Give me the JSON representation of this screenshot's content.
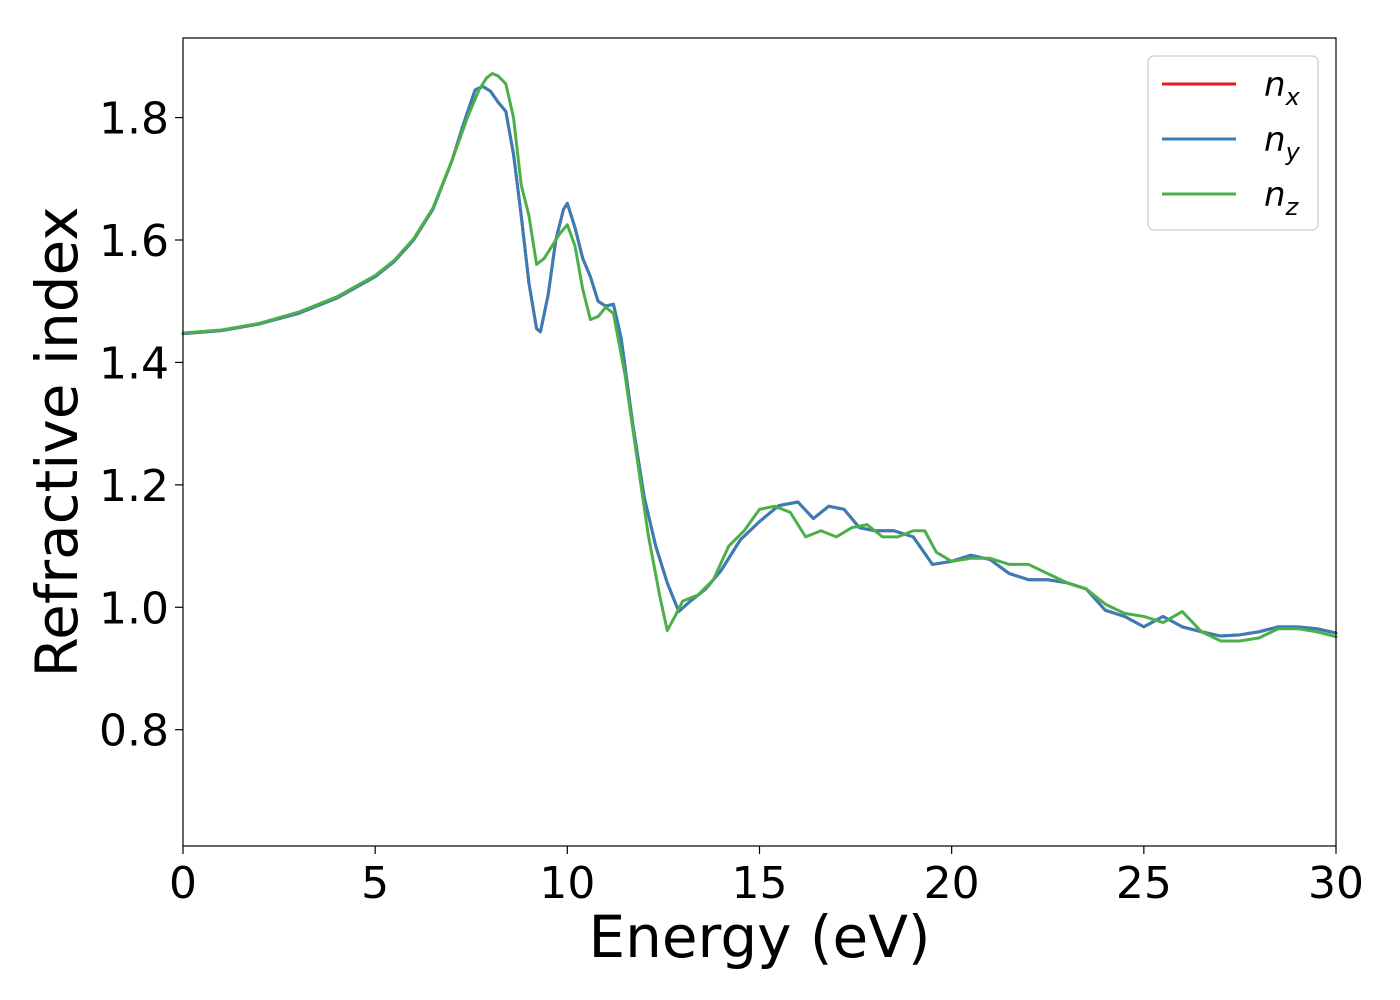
{
  "chart_data": {
    "type": "line",
    "title": "",
    "xlabel": "Energy (eV)",
    "ylabel": "Refractive index",
    "xlim": [
      0,
      30
    ],
    "ylim": [
      0.61,
      1.93
    ],
    "x_ticks": [
      "0",
      "5",
      "10",
      "15",
      "20",
      "25",
      "30"
    ],
    "y_ticks": [
      "0.8",
      "1.0",
      "1.2",
      "1.4",
      "1.6",
      "1.8"
    ],
    "grid": false,
    "legend_position": "top-right",
    "colors": {
      "n_x": "#e41a1c",
      "n_y": "#377eb8",
      "n_z": "#4daf4a"
    },
    "series": [
      {
        "name": "n_x",
        "legend_main": "n",
        "legend_sub": "x",
        "color": "#e41a1c",
        "x": [
          0,
          1,
          2,
          3,
          4,
          5,
          5.5,
          6,
          6.5,
          7,
          7.3,
          7.6,
          7.8,
          8.0,
          8.2,
          8.4,
          8.6,
          8.8,
          9.0,
          9.2,
          9.3,
          9.5,
          9.7,
          9.9,
          10.0,
          10.2,
          10.4,
          10.6,
          10.8,
          11.0,
          11.2,
          11.4,
          11.7,
          12.0,
          12.3,
          12.6,
          12.9,
          13.2,
          13.6,
          14.0,
          14.5,
          15.0,
          15.5,
          16.0,
          16.4,
          16.8,
          17.2,
          17.6,
          18.0,
          18.5,
          19.0,
          19.5,
          20.0,
          20.5,
          21.0,
          21.5,
          22.0,
          22.5,
          23.0,
          23.5,
          24.0,
          24.5,
          25.0,
          25.5,
          26.0,
          26.5,
          27.0,
          27.5,
          28.0,
          28.5,
          29.0,
          29.5,
          30.0
        ],
        "values": [
          1.447,
          1.452,
          1.463,
          1.48,
          1.505,
          1.54,
          1.565,
          1.6,
          1.65,
          1.73,
          1.79,
          1.845,
          1.851,
          1.843,
          1.825,
          1.81,
          1.74,
          1.64,
          1.53,
          1.455,
          1.45,
          1.51,
          1.6,
          1.65,
          1.66,
          1.62,
          1.57,
          1.54,
          1.5,
          1.492,
          1.495,
          1.44,
          1.3,
          1.18,
          1.1,
          1.04,
          0.993,
          1.01,
          1.03,
          1.06,
          1.11,
          1.14,
          1.166,
          1.172,
          1.145,
          1.165,
          1.16,
          1.13,
          1.125,
          1.125,
          1.115,
          1.07,
          1.075,
          1.085,
          1.078,
          1.055,
          1.045,
          1.045,
          1.04,
          1.03,
          0.995,
          0.985,
          0.968,
          0.985,
          0.968,
          0.96,
          0.953,
          0.955,
          0.96,
          0.968,
          0.968,
          0.965,
          0.958
        ]
      },
      {
        "name": "n_y",
        "legend_main": "n",
        "legend_sub": "y",
        "color": "#377eb8",
        "x": [
          0,
          1,
          2,
          3,
          4,
          5,
          5.5,
          6,
          6.5,
          7,
          7.3,
          7.6,
          7.8,
          8.0,
          8.2,
          8.4,
          8.6,
          8.8,
          9.0,
          9.2,
          9.3,
          9.5,
          9.7,
          9.9,
          10.0,
          10.2,
          10.4,
          10.6,
          10.8,
          11.0,
          11.2,
          11.4,
          11.7,
          12.0,
          12.3,
          12.6,
          12.9,
          13.2,
          13.6,
          14.0,
          14.5,
          15.0,
          15.5,
          16.0,
          16.4,
          16.8,
          17.2,
          17.6,
          18.0,
          18.5,
          19.0,
          19.5,
          20.0,
          20.5,
          21.0,
          21.5,
          22.0,
          22.5,
          23.0,
          23.5,
          24.0,
          24.5,
          25.0,
          25.5,
          26.0,
          26.5,
          27.0,
          27.5,
          28.0,
          28.5,
          29.0,
          29.5,
          30.0
        ],
        "values": [
          1.447,
          1.452,
          1.463,
          1.48,
          1.505,
          1.54,
          1.565,
          1.6,
          1.65,
          1.73,
          1.79,
          1.845,
          1.851,
          1.843,
          1.825,
          1.81,
          1.74,
          1.64,
          1.53,
          1.455,
          1.45,
          1.51,
          1.6,
          1.65,
          1.66,
          1.62,
          1.57,
          1.54,
          1.5,
          1.492,
          1.495,
          1.44,
          1.3,
          1.18,
          1.1,
          1.04,
          0.993,
          1.01,
          1.03,
          1.06,
          1.11,
          1.14,
          1.166,
          1.172,
          1.145,
          1.165,
          1.16,
          1.13,
          1.125,
          1.125,
          1.115,
          1.07,
          1.075,
          1.085,
          1.078,
          1.055,
          1.045,
          1.045,
          1.04,
          1.03,
          0.995,
          0.985,
          0.968,
          0.985,
          0.968,
          0.96,
          0.953,
          0.955,
          0.96,
          0.968,
          0.968,
          0.965,
          0.958
        ]
      },
      {
        "name": "n_z",
        "legend_main": "n",
        "legend_sub": "z",
        "color": "#4daf4a",
        "x": [
          0,
          1,
          2,
          3,
          4,
          5,
          5.5,
          6,
          6.5,
          7,
          7.4,
          7.7,
          7.9,
          8.05,
          8.2,
          8.4,
          8.6,
          8.8,
          9.0,
          9.2,
          9.4,
          9.6,
          9.8,
          10.0,
          10.2,
          10.4,
          10.6,
          10.8,
          11.0,
          11.2,
          11.5,
          11.8,
          12.1,
          12.4,
          12.6,
          12.8,
          13.0,
          13.4,
          13.8,
          14.2,
          14.6,
          15.0,
          15.4,
          15.8,
          16.2,
          16.6,
          17.0,
          17.4,
          17.8,
          18.2,
          18.6,
          19.0,
          19.3,
          19.6,
          20.0,
          20.5,
          21.0,
          21.5,
          22.0,
          22.5,
          23.0,
          23.5,
          24.0,
          24.5,
          25.0,
          25.5,
          26.0,
          26.5,
          27.0,
          27.5,
          28.0,
          28.5,
          29.0,
          29.5,
          30.0
        ],
        "values": [
          1.448,
          1.453,
          1.464,
          1.482,
          1.507,
          1.542,
          1.567,
          1.602,
          1.652,
          1.73,
          1.8,
          1.845,
          1.865,
          1.872,
          1.868,
          1.855,
          1.8,
          1.69,
          1.64,
          1.56,
          1.57,
          1.59,
          1.61,
          1.625,
          1.59,
          1.52,
          1.47,
          1.475,
          1.49,
          1.48,
          1.38,
          1.25,
          1.12,
          1.02,
          0.962,
          0.985,
          1.01,
          1.02,
          1.045,
          1.1,
          1.125,
          1.16,
          1.165,
          1.155,
          1.115,
          1.125,
          1.115,
          1.13,
          1.135,
          1.115,
          1.115,
          1.125,
          1.125,
          1.09,
          1.075,
          1.08,
          1.08,
          1.07,
          1.07,
          1.055,
          1.04,
          1.03,
          1.005,
          0.99,
          0.985,
          0.975,
          0.993,
          0.96,
          0.945,
          0.945,
          0.95,
          0.965,
          0.965,
          0.96,
          0.952
        ]
      }
    ]
  }
}
